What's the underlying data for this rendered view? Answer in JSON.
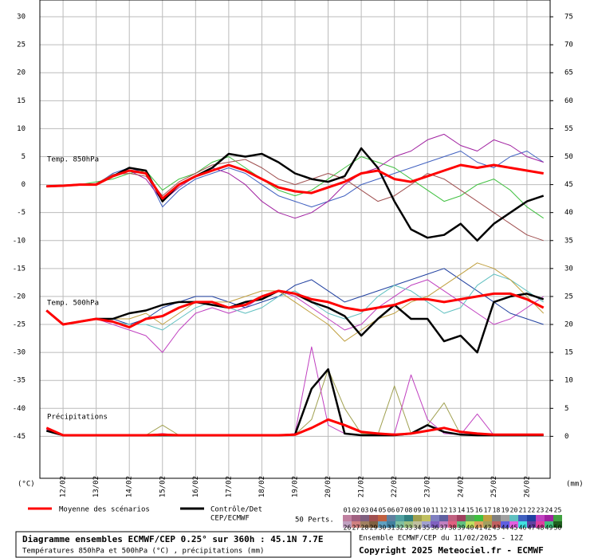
{
  "chart_data": {
    "type": "line",
    "title": "Diagramme ensembles ECMWF/CEP 0.25° sur 360h : 45.1N 7.7E",
    "subtitle": "Températures 850hPa et 500hPa (°C) , précipitations (mm)",
    "run": "Ensemble ECMWF/CEP du 11/02/2025 - 12Z",
    "copyright": "Copyright 2025 Meteociel.fr - ECMWF",
    "ylabel": "(°C)",
    "y2label": "(mm)",
    "grid": true,
    "x": [
      11.5,
      12,
      12.5,
      13,
      13.5,
      14,
      14.5,
      15,
      15.5,
      16,
      16.5,
      17,
      17.5,
      18,
      18.5,
      19,
      19.5,
      20,
      20.5,
      21,
      21.5,
      22,
      22.5,
      23,
      23.5,
      24,
      24.5,
      25,
      25.5,
      26,
      26.5
    ],
    "xlim": [
      11.3,
      26.7
    ],
    "xticks": [
      {
        "value": 12,
        "label": "12/02"
      },
      {
        "value": 13,
        "label": "13/02"
      },
      {
        "value": 14,
        "label": "14/02"
      },
      {
        "value": 15,
        "label": "15/02"
      },
      {
        "value": 16,
        "label": "16/02"
      },
      {
        "value": 17,
        "label": "17/02"
      },
      {
        "value": 18,
        "label": "18/02"
      },
      {
        "value": 19,
        "label": "19/02"
      },
      {
        "value": 20,
        "label": "20/02"
      },
      {
        "value": 21,
        "label": "21/02"
      },
      {
        "value": 22,
        "label": "22/02"
      },
      {
        "value": 23,
        "label": "23/02"
      },
      {
        "value": 24,
        "label": "24/02"
      },
      {
        "value": 25,
        "label": "25/02"
      },
      {
        "value": 26,
        "label": "26/02"
      }
    ],
    "ylim": [
      -52.5,
      33
    ],
    "yticks": [
      30,
      25,
      20,
      15,
      10,
      5,
      0,
      -5,
      -10,
      -15,
      -20,
      -25,
      -30,
      -35,
      -40,
      -45
    ],
    "y2lim": [
      -7.5,
      78
    ],
    "y2ticks": [
      75,
      70,
      65,
      60,
      55,
      50,
      45,
      40,
      35,
      30,
      25,
      20,
      15,
      10,
      5,
      0
    ],
    "legend": {
      "mean": {
        "label": "Moyenne des scénarios",
        "color": "#ff0000"
      },
      "control": {
        "label": "Contrôle/Det",
        "label2": "CEP/ECMWF",
        "color": "#000000"
      },
      "members_label": "50 Perts.",
      "members": [
        {
          "name": "01",
          "color": "#c080a0"
        },
        {
          "name": "02",
          "color": "#a06080"
        },
        {
          "name": "03",
          "color": "#806080"
        },
        {
          "name": "04",
          "color": "#a05050"
        },
        {
          "name": "05",
          "color": "#c06040"
        },
        {
          "name": "06",
          "color": "#6080a0"
        },
        {
          "name": "07",
          "color": "#50a0a0"
        },
        {
          "name": "08",
          "color": "#308080"
        },
        {
          "name": "09",
          "color": "#a0a050"
        },
        {
          "name": "10",
          "color": "#c0c060"
        },
        {
          "name": "11",
          "color": "#8080c0"
        },
        {
          "name": "12",
          "color": "#6060a0"
        },
        {
          "name": "13",
          "color": "#c06080"
        },
        {
          "name": "14",
          "color": "#a04060"
        },
        {
          "name": "15",
          "color": "#60a060"
        },
        {
          "name": "16",
          "color": "#40c040"
        },
        {
          "name": "17",
          "color": "#c0a040"
        },
        {
          "name": "18",
          "color": "#808080"
        },
        {
          "name": "19",
          "color": "#a0a0a0"
        },
        {
          "name": "20",
          "color": "#60c0c0"
        },
        {
          "name": "21",
          "color": "#4060c0"
        },
        {
          "name": "22",
          "color": "#2040a0"
        },
        {
          "name": "23",
          "color": "#c040c0"
        },
        {
          "name": "24",
          "color": "#a020a0"
        },
        {
          "name": "25",
          "color": "#40a040"
        },
        {
          "name": "26",
          "color": "#c0a0c0"
        },
        {
          "name": "27",
          "color": "#d08080"
        },
        {
          "name": "28",
          "color": "#a08060"
        },
        {
          "name": "29",
          "color": "#806040"
        },
        {
          "name": "30",
          "color": "#60a0c0"
        },
        {
          "name": "31",
          "color": "#4080a0"
        },
        {
          "name": "32",
          "color": "#80c0a0"
        },
        {
          "name": "33",
          "color": "#a0c080"
        },
        {
          "name": "34",
          "color": "#c0c0a0"
        },
        {
          "name": "35",
          "color": "#a0a0d0"
        },
        {
          "name": "36",
          "color": "#8060c0"
        },
        {
          "name": "37",
          "color": "#c080c0"
        },
        {
          "name": "38",
          "color": "#e06080"
        },
        {
          "name": "39",
          "color": "#60c080"
        },
        {
          "name": "40",
          "color": "#c0e060"
        },
        {
          "name": "41",
          "color": "#e0a060"
        },
        {
          "name": "42",
          "color": "#a0a060"
        },
        {
          "name": "43",
          "color": "#c06060"
        },
        {
          "name": "44",
          "color": "#6060e0"
        },
        {
          "name": "45",
          "color": "#e060e0"
        },
        {
          "name": "46",
          "color": "#40e0e0"
        },
        {
          "name": "47",
          "color": "#6040a0"
        },
        {
          "name": "48",
          "color": "#e040a0"
        },
        {
          "name": "49",
          "color": "#40c080"
        },
        {
          "name": "50",
          "color": "#206020"
        }
      ]
    },
    "panels": [
      {
        "label": "Temp. 850hPa",
        "axis": "y",
        "mean": [
          -0.3,
          -0.2,
          0,
          0,
          1.5,
          2.5,
          2,
          -2.5,
          0,
          1.5,
          2.5,
          3.5,
          2.5,
          1,
          -0.5,
          -1.2,
          -1.5,
          -0.5,
          0.5,
          2,
          2.5,
          1,
          0.5,
          1.5,
          2.5,
          3.5,
          3,
          3.5,
          3,
          2.5,
          2
        ],
        "control": [
          -0.3,
          -0.2,
          0,
          0,
          1.5,
          3,
          2.5,
          -3,
          0,
          1.5,
          3,
          5.5,
          5,
          5.5,
          4,
          2,
          1,
          0.5,
          1.5,
          6.5,
          3,
          -3,
          -8,
          -9.5,
          -9,
          -7,
          -10,
          -7,
          -5,
          -3,
          -2
        ],
        "perturbations": [
          {
            "color": "#4060c0",
            "values": [
              -0.3,
              -0.2,
              0,
              0,
              2,
              3,
              2,
              -4,
              -1,
              1,
              2,
              3,
              2,
              0,
              -2,
              -3,
              -4,
              -3,
              -2,
              0,
              1,
              2,
              3,
              4,
              5,
              6,
              4,
              3,
              5,
              6,
              4
            ]
          },
          {
            "color": "#40c040",
            "values": [
              -0.3,
              -0.1,
              0,
              0.5,
              1,
              2,
              2.5,
              -1,
              1,
              2,
              4,
              5,
              3,
              1,
              -1,
              -2,
              -1,
              1,
              3,
              5,
              4,
              3,
              1,
              -1,
              -3,
              -2,
              0,
              1,
              -1,
              -4,
              -6
            ]
          },
          {
            "color": "#a020a0",
            "values": [
              -0.3,
              -0.2,
              0,
              0,
              1.5,
              2.5,
              1,
              -3,
              -0.5,
              1.5,
              3,
              2,
              0,
              -3,
              -5,
              -6,
              -5,
              -3,
              0,
              2,
              3,
              5,
              6,
              8,
              9,
              7,
              6,
              8,
              7,
              5,
              4
            ]
          },
          {
            "color": "#a05050",
            "values": [
              -0.3,
              -0.2,
              0,
              0.2,
              1.8,
              2,
              1.5,
              -2,
              0.5,
              2,
              3.5,
              4,
              4.5,
              3,
              1,
              0,
              1,
              2,
              1,
              -1,
              -3,
              -2,
              0,
              2,
              1,
              -1,
              -3,
              -5,
              -7,
              -9,
              -10
            ]
          }
        ]
      },
      {
        "label": "Temp. 500hPa",
        "axis": "y",
        "mean": [
          -22.5,
          -25,
          -24.5,
          -24,
          -24.5,
          -25.5,
          -24,
          -23.5,
          -22,
          -21,
          -21,
          -22,
          -21.5,
          -20,
          -19,
          -19.5,
          -20.5,
          -21,
          -22,
          -22.5,
          -22,
          -21.5,
          -20.5,
          -20.5,
          -21,
          -20.5,
          -20,
          -19.5,
          -19.5,
          -20.5,
          -22
        ],
        "control": [
          -22.5,
          -25,
          -24.5,
          -24,
          -24,
          -23,
          -22.5,
          -21.5,
          -21,
          -21,
          -21.5,
          -22,
          -21,
          -20.5,
          -19,
          -19.5,
          -21,
          -22,
          -23.5,
          -27,
          -24,
          -21.5,
          -24,
          -24,
          -28,
          -27,
          -30,
          -21,
          -20,
          -19.5,
          -20.5
        ],
        "perturbations": [
          {
            "color": "#c040c0",
            "values": [
              -22.5,
              -25,
              -24.5,
              -24,
              -25,
              -26,
              -27,
              -30,
              -26,
              -23,
              -22,
              -23,
              -22,
              -20,
              -19,
              -20,
              -22,
              -24,
              -26,
              -25,
              -22,
              -20,
              -18,
              -17,
              -19,
              -21,
              -23,
              -25,
              -24,
              -22,
              -20
            ]
          },
          {
            "color": "#2040a0",
            "values": [
              -22.5,
              -25,
              -24.5,
              -24,
              -24,
              -25,
              -24,
              -22,
              -21,
              -20,
              -20,
              -21,
              -22,
              -21,
              -20,
              -18,
              -17,
              -19,
              -21,
              -20,
              -19,
              -18,
              -17,
              -16,
              -15,
              -17,
              -19,
              -21,
              -23,
              -24,
              -25
            ]
          },
          {
            "color": "#60c0c0",
            "values": [
              -22.5,
              -25,
              -24.5,
              -24,
              -24.5,
              -25,
              -25,
              -26,
              -24,
              -22,
              -21,
              -22,
              -23,
              -22,
              -20,
              -19,
              -21,
              -23,
              -24,
              -23,
              -20,
              -18,
              -19,
              -21,
              -23,
              -22,
              -18,
              -16,
              -17,
              -19,
              -21
            ]
          },
          {
            "color": "#c0a040",
            "values": [
              -22.5,
              -25,
              -24.5,
              -24,
              -24,
              -24,
              -23,
              -25,
              -23,
              -21,
              -21,
              -21,
              -20,
              -19,
              -19,
              -21,
              -23,
              -25,
              -28,
              -26,
              -24,
              -23,
              -21,
              -20,
              -18,
              -16,
              -14,
              -15,
              -17,
              -20,
              -23
            ]
          }
        ]
      },
      {
        "label": "Précipitations",
        "axis": "y2",
        "mean": [
          1.5,
          0.2,
          0.2,
          0.2,
          0.2,
          0.2,
          0.2,
          0.3,
          0.2,
          0.2,
          0.2,
          0.2,
          0.2,
          0.2,
          0.2,
          0.3,
          1.5,
          3,
          2,
          0.8,
          0.5,
          0.3,
          0.5,
          1,
          1.5,
          0.8,
          0.5,
          0.3,
          0.3,
          0.3,
          0.3
        ],
        "control": [
          1,
          0.2,
          0.2,
          0.2,
          0.2,
          0.2,
          0.2,
          0.2,
          0.2,
          0.2,
          0.2,
          0.2,
          0.2,
          0.2,
          0.2,
          0.3,
          8.5,
          12,
          0.5,
          0.2,
          0.2,
          0.2,
          0.5,
          2,
          0.8,
          0.3,
          0.2,
          0.2,
          0.2,
          0.2,
          0.2
        ],
        "perturbations": [
          {
            "color": "#a0a050",
            "values": [
              1,
              0.2,
              0.2,
              0.2,
              0.2,
              0.2,
              0.2,
              2,
              0.2,
              0.2,
              0.2,
              0.2,
              0.2,
              0.2,
              0.2,
              0.3,
              3,
              12,
              5,
              0.5,
              0.3,
              9,
              0.5,
              2,
              6,
              0.3,
              0.2,
              0.2,
              0.2,
              0.2,
              0.2
            ]
          },
          {
            "color": "#c040c0",
            "values": [
              1.2,
              0.2,
              0.2,
              0.2,
              0.2,
              0.2,
              0.2,
              0.5,
              0.2,
              0.2,
              0.2,
              0.2,
              0.2,
              0.2,
              0.2,
              0.5,
              16,
              2,
              0.5,
              0.2,
              0.2,
              0.5,
              11,
              3,
              0.5,
              0.3,
              4,
              0.2,
              0.2,
              0.2,
              0.2
            ]
          }
        ]
      }
    ]
  }
}
